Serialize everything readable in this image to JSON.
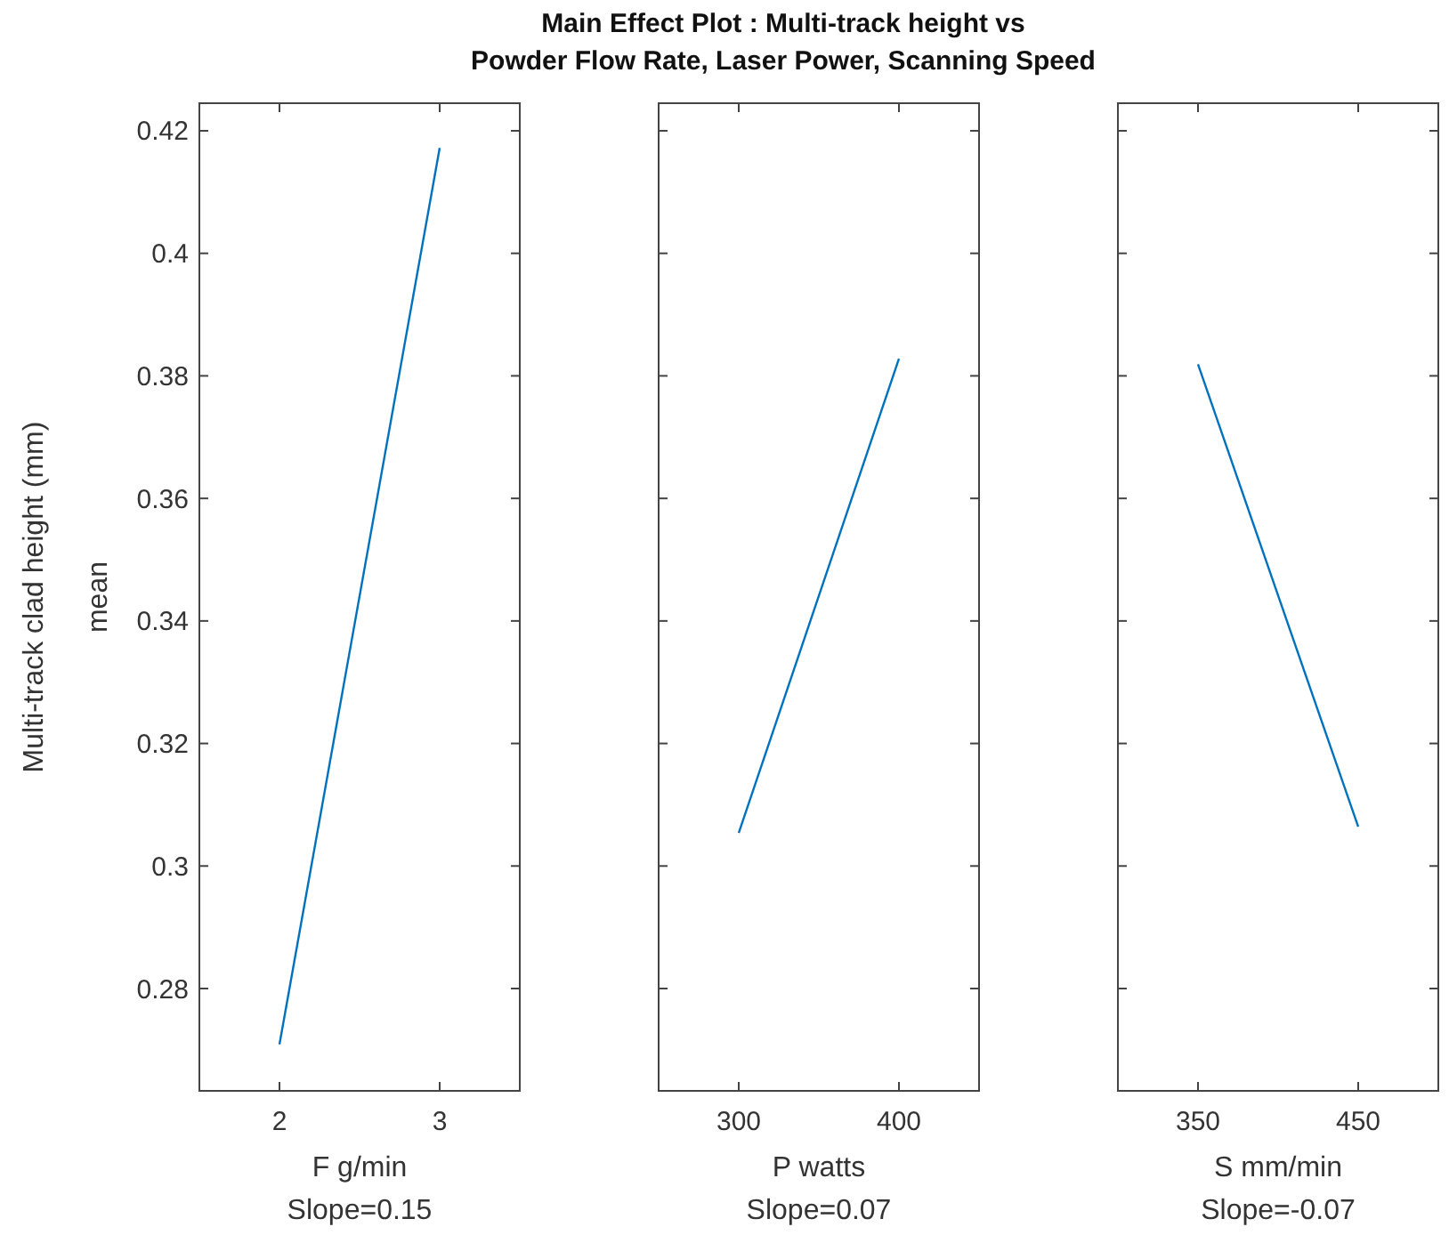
{
  "chart_data": [
    {
      "type": "line",
      "ylabel": "mean",
      "xlabel": "F g/min",
      "annotations": [
        "Slope=0.15",
        "Multi-track clad height (mm)"
      ],
      "x": [
        2,
        3
      ],
      "series": [
        {
          "color": "#0072bd",
          "values": [
            0.2709,
            0.4172
          ]
        }
      ],
      "xlim": [
        1.5,
        3.5
      ],
      "xticks": [
        2,
        3
      ],
      "ylim": [
        0.2633,
        0.4245
      ],
      "yticks": [
        0.28,
        0.3,
        0.32,
        0.34,
        0.36,
        0.38,
        0.4,
        0.42
      ],
      "grid": false
    },
    {
      "type": "line",
      "title": "Main Effect Plot : Multi-track height vs\nPowder Flow Rate, Laser Power, Scanning Speed",
      "xlabel": "P watts",
      "annotations": [
        "Slope=0.07"
      ],
      "x": [
        300,
        400
      ],
      "series": [
        {
          "color": "#0072bd",
          "values": [
            0.3054,
            0.3828
          ]
        }
      ],
      "xlim": [
        250,
        450
      ],
      "xticks": [
        300,
        400
      ],
      "ylim": [
        0.2633,
        0.4245
      ],
      "yticks": [
        0.28,
        0.3,
        0.32,
        0.34,
        0.36,
        0.38,
        0.4,
        0.42
      ],
      "tick_labels": "x",
      "grid": false
    },
    {
      "type": "line",
      "xlabel": "S mm/min",
      "annotations": [
        "Slope=-0.07"
      ],
      "x": [
        350,
        450
      ],
      "series": [
        {
          "color": "#0072bd",
          "values": [
            0.3819,
            0.3064
          ]
        }
      ],
      "xlim": [
        300,
        500
      ],
      "xticks": [
        350,
        450
      ],
      "ylim": [
        0.2633,
        0.4245
      ],
      "yticks": [
        0.28,
        0.3,
        0.32,
        0.34,
        0.36,
        0.38,
        0.4,
        0.42
      ],
      "tick_labels": "x",
      "grid": false
    }
  ]
}
